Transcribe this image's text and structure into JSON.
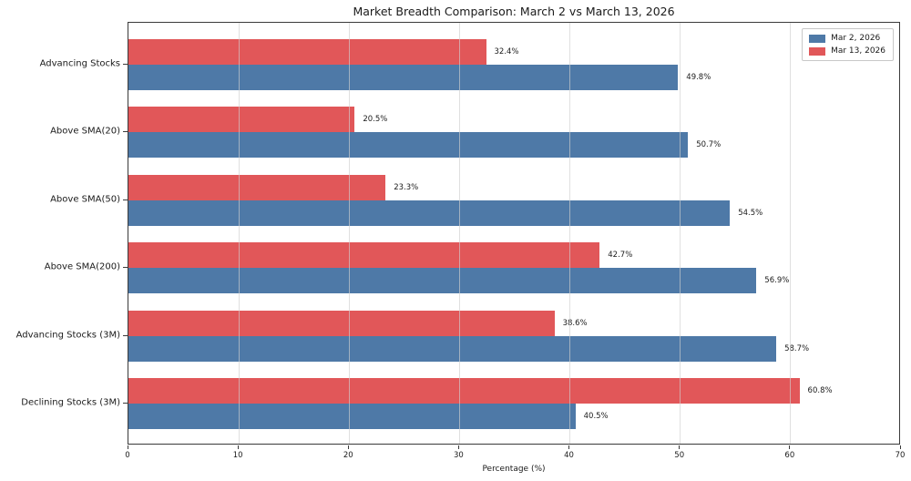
{
  "chart_data": {
    "type": "bar",
    "orientation": "horizontal",
    "title": "Market Breadth Comparison: March 2 vs March 13, 2026",
    "categories": [
      "Advancing Stocks",
      "Above SMA(20)",
      "Above SMA(50)",
      "Above SMA(200)",
      "Advancing Stocks (3M)",
      "Declining Stocks (3M)"
    ],
    "series": [
      {
        "name": "Mar 2, 2026",
        "color": "#4E79A7",
        "values": [
          49.8,
          50.7,
          54.5,
          56.9,
          58.7,
          40.5
        ]
      },
      {
        "name": "Mar 13, 2026",
        "color": "#E15759",
        "values": [
          32.4,
          20.5,
          23.3,
          42.7,
          38.6,
          60.8
        ]
      }
    ],
    "value_labels": [
      [
        "49.8%",
        "50.7%",
        "54.5%",
        "56.9%",
        "58.7%",
        "40.5%"
      ],
      [
        "32.4%",
        "20.5%",
        "23.3%",
        "42.7%",
        "38.6%",
        "60.8%"
      ]
    ],
    "xlabel": "Percentage (%)",
    "xlim": [
      0,
      70
    ],
    "xticks": [
      0,
      10,
      20,
      30,
      40,
      50,
      60,
      70
    ],
    "grid": true,
    "grid_axis": "x",
    "legend_position": "upper right",
    "legend_entries": [
      "Mar 2, 2026",
      "Mar 13, 2026"
    ]
  }
}
